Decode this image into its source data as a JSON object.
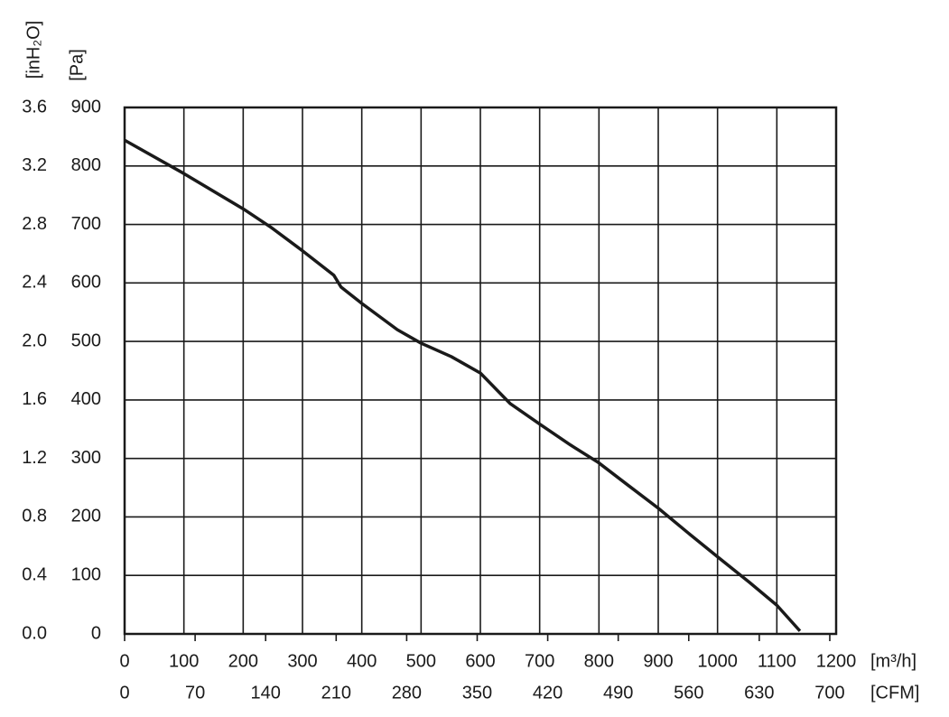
{
  "chart_data": {
    "type": "line",
    "x_label": "[m³/h]",
    "y_label": "[Pa]",
    "y2_label": "[inH₂O]",
    "x2_label": "[CFM]",
    "x": [
      0,
      100,
      201,
      247,
      300,
      353,
      365,
      400,
      460,
      500,
      551,
      600,
      650,
      701,
      752,
      799,
      848,
      900,
      950,
      1001,
      1054,
      1100,
      1139
    ],
    "series": [
      {
        "color": "#1a1a1a",
        "values": [
          844,
          787,
          726,
          695,
          655,
          613,
          593,
          565,
          520,
          497,
          474,
          446,
          394,
          358,
          323,
          293,
          255,
          215,
          173,
          131,
          88,
          49,
          5
        ]
      }
    ],
    "xlim": [
      0,
      1200
    ],
    "xticks": [
      0,
      100,
      200,
      300,
      400,
      500,
      600,
      700,
      800,
      900,
      1000,
      1100,
      1200
    ],
    "ylim": [
      0,
      900
    ],
    "yticks": [
      0,
      100,
      200,
      300,
      400,
      500,
      600,
      700,
      800,
      900
    ],
    "y2lim": [
      0,
      3.6
    ],
    "y2ticks": [
      {
        "value": 0,
        "label": "0.0"
      },
      0.4,
      0.8,
      1.2,
      1.6,
      {
        "value": 2,
        "label": "2.0"
      },
      2.4,
      2.8,
      3.2,
      3.6
    ],
    "x2lim": [
      0,
      706.3
    ],
    "x2ticks": [
      0,
      70,
      140,
      210,
      280,
      350,
      420,
      490,
      560,
      630,
      700
    ],
    "grid": true
  }
}
